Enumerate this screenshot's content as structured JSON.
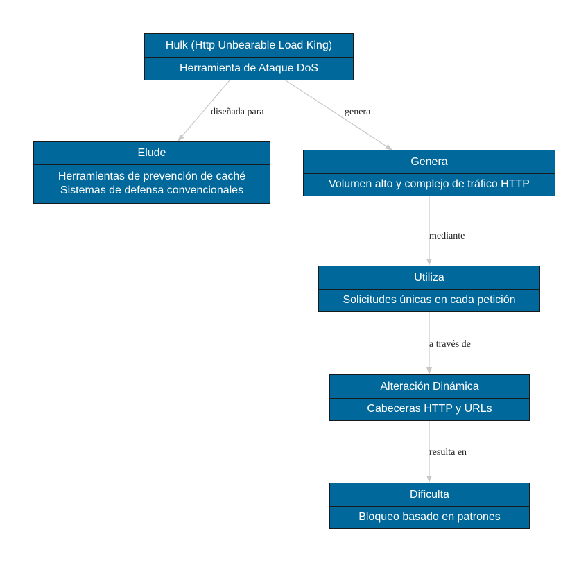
{
  "nodes": {
    "hulk": {
      "title": "Hulk (Http Unbearable Load King)",
      "lines": [
        "Herramienta de Ataque DoS"
      ]
    },
    "elude": {
      "title": "Elude",
      "lines": [
        "Herramientas de prevención de caché",
        "Sistemas de defensa convencionales"
      ]
    },
    "genera": {
      "title": "Genera",
      "lines": [
        "Volumen alto y complejo de tráfico HTTP"
      ]
    },
    "utiliza": {
      "title": "Utiliza",
      "lines": [
        "Solicitudes únicas en cada petición"
      ]
    },
    "alteracion": {
      "title": "Alteración Dinámica",
      "lines": [
        "Cabeceras HTTP y URLs"
      ]
    },
    "dificulta": {
      "title": "Dificulta",
      "lines": [
        "Bloqueo basado en patrones"
      ]
    }
  },
  "edges": {
    "hulk_elude": "diseñada para",
    "hulk_genera": "genera",
    "genera_utiliza": "mediante",
    "utiliza_alteracion": "a través de",
    "alteracion_dificulta": "resulta en"
  },
  "colors": {
    "node_fill": "#00689a",
    "node_border": "#1a1a1a",
    "edge": "#c8c8c8"
  }
}
